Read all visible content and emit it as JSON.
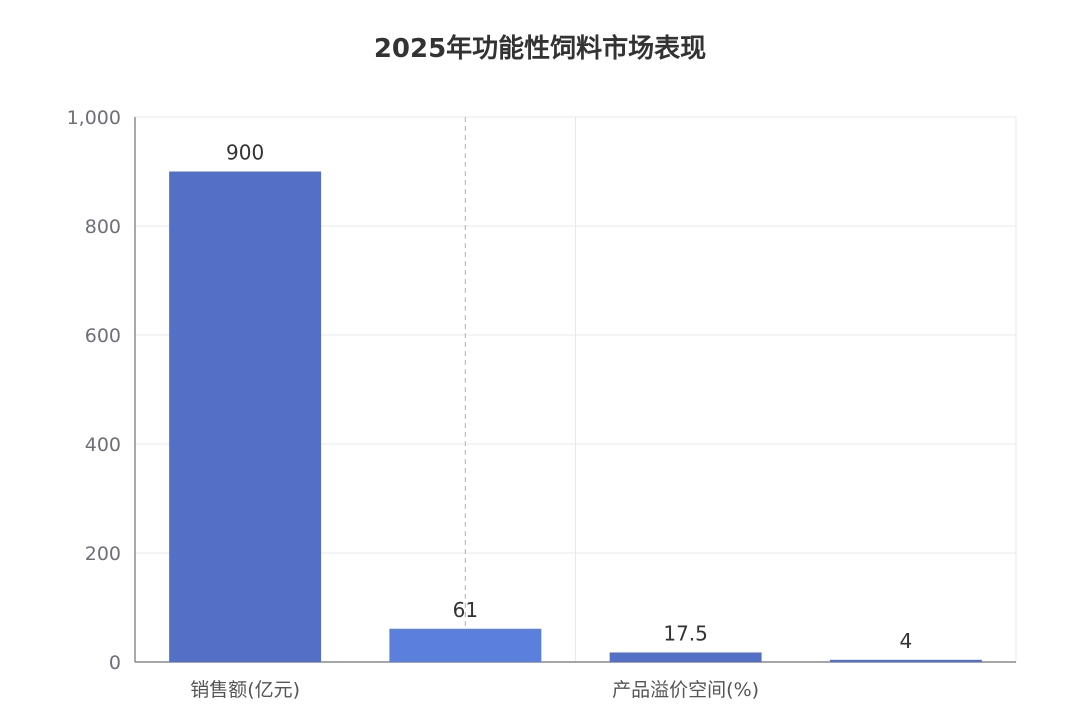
{
  "chart_data": {
    "type": "bar",
    "title": "2025年功能性饲料市场表现",
    "categories": [
      "销售额(亿元)",
      "产品溢价空间(%)"
    ],
    "bars": [
      {
        "value": 900,
        "label": "900",
        "color": "#5470c6"
      },
      {
        "value": 61,
        "label": "61",
        "color": "#5b7fdc"
      },
      {
        "value": 17.5,
        "label": "17.5",
        "color": "#5470c6"
      },
      {
        "value": 4,
        "label": "4",
        "color": "#5470c6"
      }
    ],
    "yticks": [
      "0",
      "200",
      "400",
      "600",
      "800",
      "1,000"
    ],
    "ylim": [
      0,
      1000
    ],
    "grid": true,
    "legend": "none"
  }
}
